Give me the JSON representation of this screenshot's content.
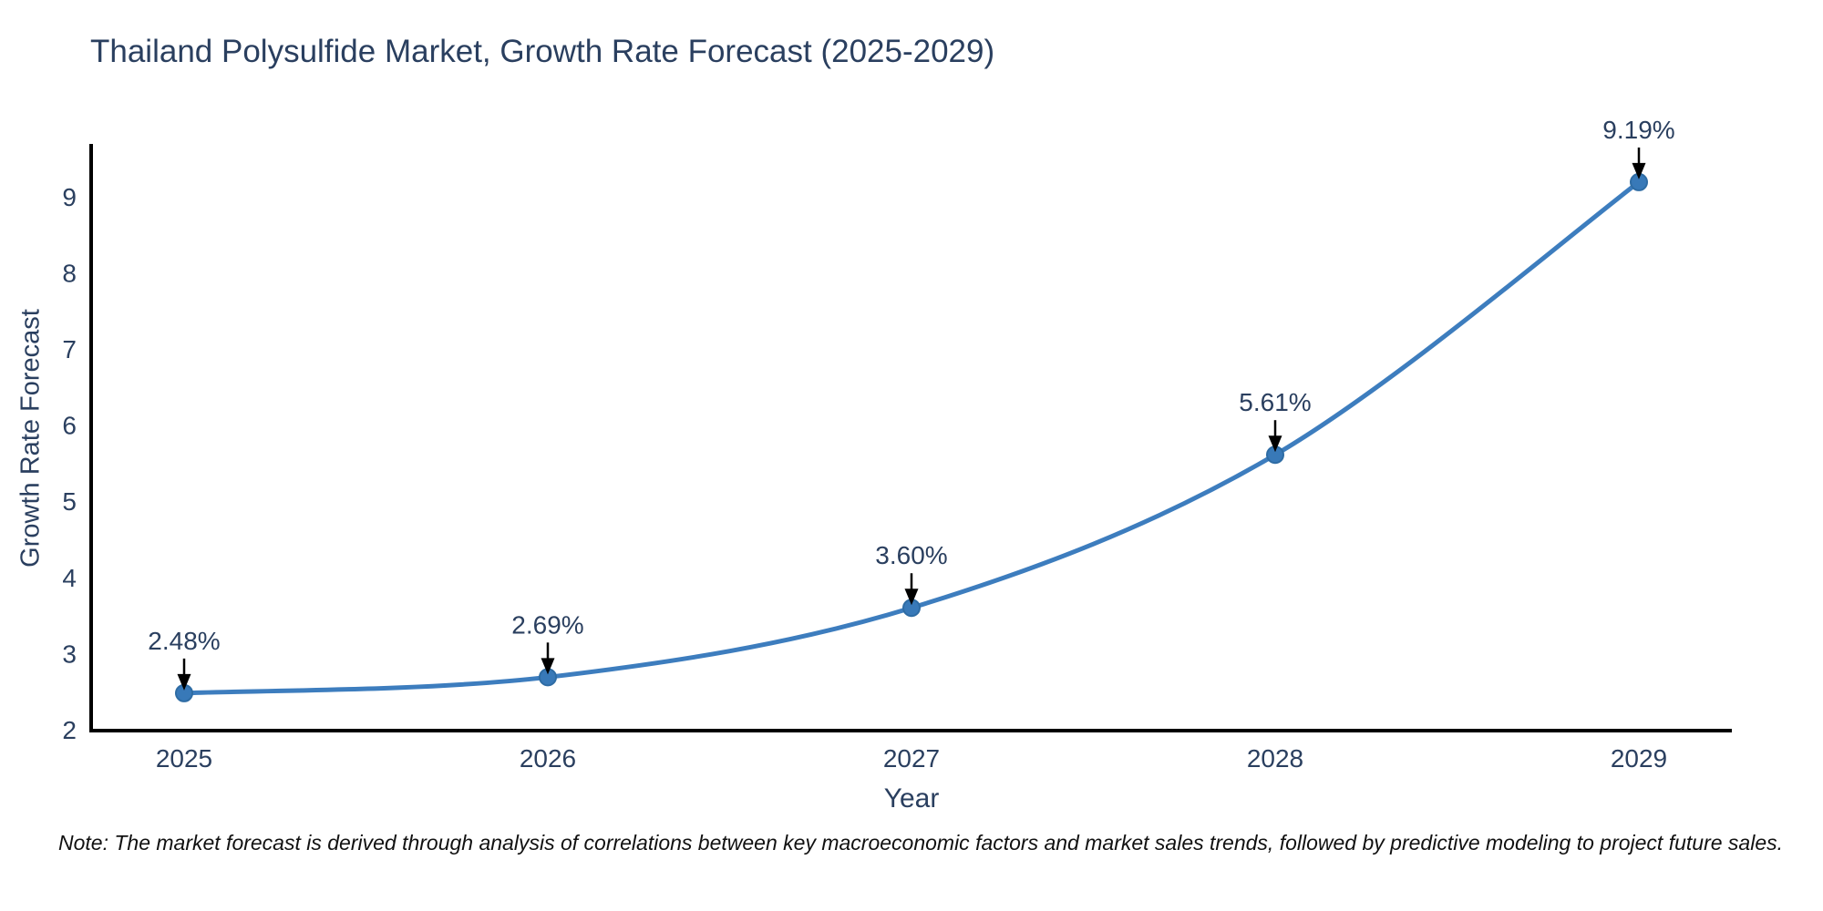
{
  "title": "Thailand Polysulfide Market, Growth Rate Forecast (2025-2029)",
  "note": "Note: The market forecast is derived through analysis of correlations between key macroeconomic factors and market sales trends, followed by predictive modeling to project future sales.",
  "chart_data": {
    "type": "line",
    "title": "Thailand Polysulfide Market, Growth Rate Forecast (2025-2029)",
    "xlabel": "Year",
    "ylabel": "Growth Rate Forecast",
    "categories": [
      "2025",
      "2026",
      "2027",
      "2028",
      "2029"
    ],
    "x": [
      2025,
      2026,
      2027,
      2028,
      2029
    ],
    "series": [
      {
        "name": "Growth Rate Forecast",
        "values": [
          2.48,
          2.69,
          3.6,
          5.61,
          9.19
        ]
      }
    ],
    "point_labels": [
      "2.48%",
      "2.69%",
      "3.60%",
      "5.61%",
      "9.19%"
    ],
    "yticks": [
      2,
      3,
      4,
      5,
      6,
      7,
      8,
      9
    ],
    "ylim": [
      2,
      9.7
    ],
    "xlim": [
      2024.74,
      2029.26
    ],
    "grid": false,
    "legend": "none",
    "line_color": "#3d7dbe",
    "marker_color": "#3879b8",
    "marker_edge_color": "#2e6ca4",
    "axis_color": "#000000",
    "text_color": "#2a3f5f",
    "annotation_color": "#2a3f5f",
    "arrow_color": "#000000",
    "background_color": "#ffffff"
  }
}
